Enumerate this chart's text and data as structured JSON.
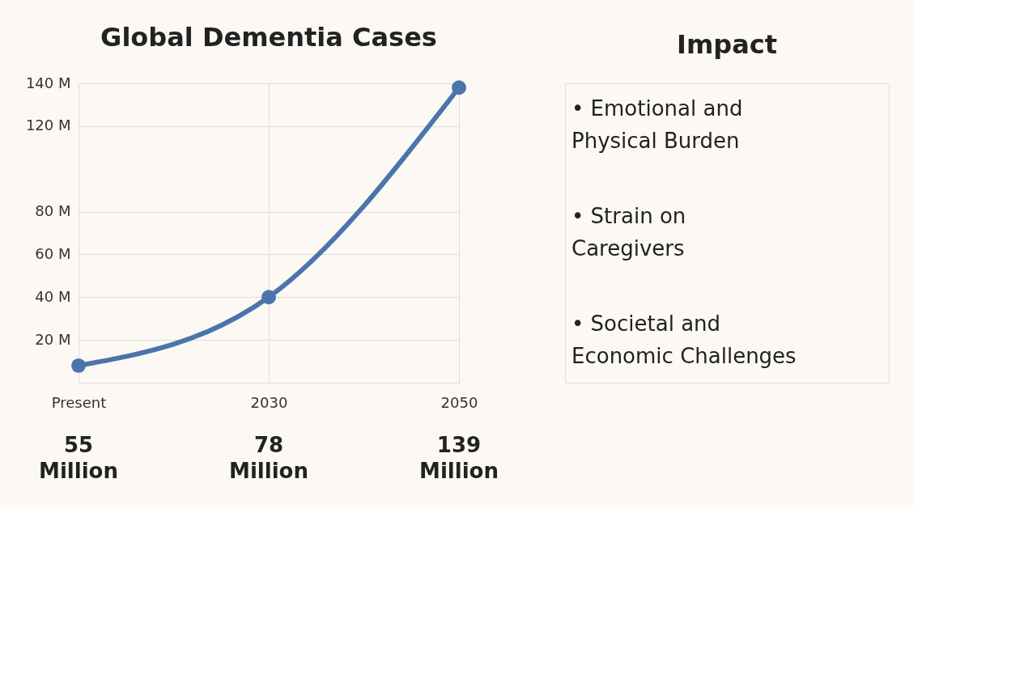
{
  "chart_data": [
    {
      "type": "line",
      "title": "Global Dementia Cases",
      "categories": [
        "Present",
        "2030",
        "2050"
      ],
      "series": [
        {
          "color": "#4c74ac",
          "values": [
            8,
            40,
            138
          ]
        }
      ],
      "ylim": [
        0,
        140
      ],
      "yticks": [
        {
          "value": 20,
          "label": "20 M"
        },
        {
          "value": 40,
          "label": "40 M"
        },
        {
          "value": 60,
          "label": "60 M"
        },
        {
          "value": 80,
          "label": "80 M"
        },
        {
          "value": 120,
          "label": "120 M"
        },
        {
          "value": 140,
          "label": "140 M"
        }
      ],
      "grid": true,
      "marker": "circle",
      "line_style": "solid",
      "annotations": [
        "55 Million",
        "78 Million",
        "139 Million"
      ]
    },
    {
      "type": "other",
      "title": "Impact",
      "annotations": [
        "• Emotional and Physical Burden",
        "• Strain on Caregivers",
        "• Societal and Economic Challenges"
      ]
    }
  ]
}
